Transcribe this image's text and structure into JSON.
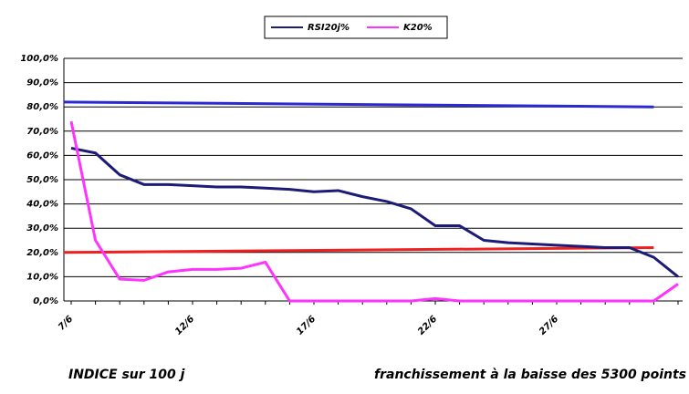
{
  "chart_data": {
    "type": "line",
    "categories": [
      "7/6",
      null,
      null,
      null,
      null,
      "12/6",
      null,
      null,
      null,
      null,
      "17/6",
      null,
      null,
      null,
      null,
      "22/6",
      null,
      null,
      null,
      null,
      "27/6",
      null,
      null,
      null,
      null,
      null
    ],
    "series": [
      {
        "name": "RSI20j%",
        "color": "#1c1c78",
        "values": [
          63,
          61,
          52,
          48,
          48,
          47.5,
          47,
          47,
          46.5,
          46,
          45,
          45.5,
          43,
          41,
          38,
          31,
          31,
          25,
          24,
          23.5,
          23,
          22.5,
          22,
          22,
          18,
          10
        ]
      },
      {
        "name": "K20%",
        "color": "#ff33ff",
        "values": [
          74,
          25,
          9,
          8.5,
          12,
          13,
          13,
          13.5,
          16,
          0,
          0,
          0,
          0,
          0,
          0,
          1,
          0,
          0,
          0,
          0,
          0,
          0,
          0,
          0,
          0,
          7
        ]
      }
    ],
    "trend_lines": [
      {
        "color": "#2a2ad0",
        "values": [
          82,
          80
        ]
      },
      {
        "color": "#ee2020",
        "values": [
          20,
          22
        ]
      }
    ],
    "ylim": [
      0,
      100
    ],
    "yticks": [
      {
        "value": 0,
        "label": "0,0%"
      },
      {
        "value": 10,
        "label": "10,0%"
      },
      {
        "value": 20,
        "label": "20,0%"
      },
      {
        "value": 30,
        "label": "30,0%"
      },
      {
        "value": 40,
        "label": "40,0%"
      },
      {
        "value": 50,
        "label": "50,0%"
      },
      {
        "value": 60,
        "label": "60,0%"
      },
      {
        "value": 70,
        "label": "70,0%"
      },
      {
        "value": 80,
        "label": "80,0%"
      },
      {
        "value": 90,
        "label": "90,0%"
      },
      {
        "value": 100,
        "label": "100,0%"
      }
    ],
    "grid": true,
    "legend": "top",
    "annotations": [
      "INDICE sur 100 j",
      "franchissement à la baisse des 5300 points"
    ]
  }
}
